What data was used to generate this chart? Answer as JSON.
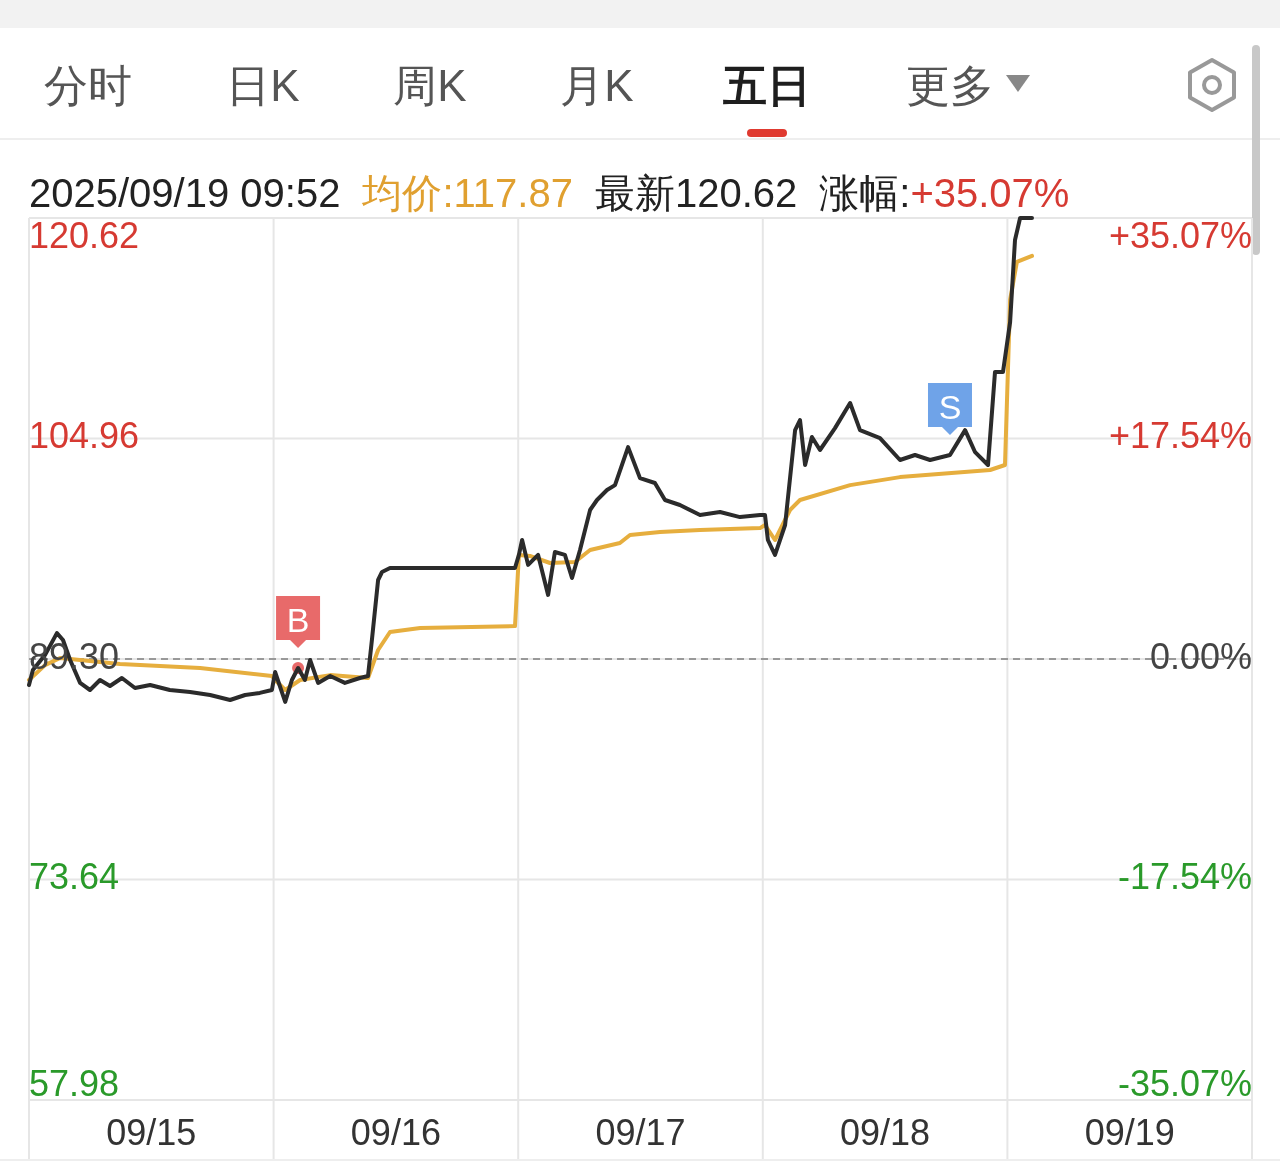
{
  "chart_data": {
    "type": "line",
    "annotations": [
      "分时",
      "日K",
      "周K",
      "月K",
      "五日",
      "更多",
      "2025/09/19 09:52",
      "均价:117.87",
      "最新120.62",
      "涨幅:+35.07%",
      {
        "text": "B",
        "x": "2025-09-16T02:24",
        "y": 88.66
      },
      {
        "text": "S",
        "x": "2025-09-18T18:22",
        "y": 103.79
      }
    ],
    "xlim": [
      "2025-09-15",
      "2025-09-20"
    ],
    "xticks": [
      {
        "value": "2025-09-15T12:00",
        "label": "09/15"
      },
      {
        "value": "2025-09-16",
        "label": null
      },
      {
        "value": "2025-09-16T12:00",
        "label": "09/16"
      },
      {
        "value": "2025-09-17",
        "label": null
      },
      {
        "value": "2025-09-17T12:00",
        "label": "09/17"
      },
      {
        "value": "2025-09-18",
        "label": null
      },
      {
        "value": "2025-09-18T12:00",
        "label": "09/18"
      },
      {
        "value": "2025-09-19",
        "label": null
      },
      {
        "value": "2025-09-19T12:00",
        "label": "09/19"
      }
    ],
    "ylim": [
      57.98,
      120.62
    ],
    "yticks": [
      57.98,
      73.64,
      {
        "value": 89.3,
        "label": "89.30"
      },
      104.96,
      120.62
    ],
    "y2lim": [
      -35.07,
      35.07
    ],
    "y2ticks": [
      {
        "value": -35.07,
        "label": "-35.07%"
      },
      {
        "value": -17.54,
        "label": "-17.54%"
      },
      {
        "value": 0,
        "label": "0.00%"
      },
      {
        "value": 17.54,
        "label": "+17.54%"
      },
      {
        "value": 35.07,
        "label": "+35.07%"
      }
    ],
    "grid": true,
    "ref_lines": [
      {
        "axis": "y",
        "value": 89.3,
        "color": "#999999",
        "line_style": "dashed"
      }
    ],
    "series": [
      {
        "color": "#2b2b2b",
        "x": [
          "2025-09-15T00:00",
          "2025-09-15T00:23",
          "2025-09-15T01:34",
          "2025-09-15T02:44",
          "2025-09-15T03:20",
          "2025-09-15T04:02",
          "2025-09-15T05:01",
          "2025-09-15T05:59",
          "2025-09-15T06:58",
          "2025-09-15T07:57",
          "2025-09-15T09:07",
          "2025-09-15T10:24",
          "2025-09-15T11:53",
          "2025-09-15T13:49",
          "2025-09-15T15:48",
          "2025-09-15T17:46",
          "2025-09-15T19:44",
          "2025-09-15T21:12",
          "2025-09-15T22:39",
          "2025-09-15T23:50",
          "2025-09-16T00:09",
          "2025-09-16T01:08",
          "2025-09-16T01:48",
          "2025-09-16T02:24",
          "2025-09-16T03:04",
          "2025-09-16T03:35",
          "2025-09-16T04:22",
          "2025-09-16T05:33",
          "2025-09-16T07:00",
          "2025-09-16T08:28",
          "2025-09-16T09:16",
          "2025-09-16T09:39",
          "2025-09-16T10:15",
          "2025-09-16T10:38",
          "2025-09-16T11:25",
          "2025-09-16T17:18",
          "2025-09-16T23:41",
          "2025-09-17T00:04",
          "2025-09-17T00:23",
          "2025-09-17T00:58",
          "2025-09-17T01:57",
          "2025-09-17T02:56",
          "2025-09-17T03:36",
          "2025-09-17T04:35",
          "2025-09-17T05:17",
          "2025-09-17T06:04",
          "2025-09-17T07:03",
          "2025-09-17T07:44",
          "2025-09-17T08:43",
          "2025-09-17T09:30",
          "2025-09-17T10:47",
          "2025-09-17T11:57",
          "2025-09-17T13:25",
          "2025-09-17T14:24",
          "2025-09-17T15:52",
          "2025-09-17T17:50",
          "2025-09-17T19:48",
          "2025-09-17T21:46",
          "2025-09-17T23:44",
          "2025-09-18T00:13",
          "2025-09-18T00:30",
          "2025-09-18T01:12",
          "2025-09-18T02:11",
          "2025-09-18T03:10",
          "2025-09-18T03:39",
          "2025-09-18T04:09",
          "2025-09-18T04:49",
          "2025-09-18T05:37",
          "2025-09-18T07:05",
          "2025-09-18T08:34",
          "2025-09-18T09:32",
          "2025-09-18T11:30",
          "2025-09-18T13:28",
          "2025-09-18T14:56",
          "2025-09-18T16:25",
          "2025-09-18T18:22",
          "2025-09-18T19:51",
          "2025-09-18T20:50",
          "2025-09-18T22:06",
          "2025-09-18T22:47",
          "2025-09-18T23:34",
          "2025-09-19T00:16",
          "2025-09-19T00:45",
          "2025-09-19T01:15",
          "2025-09-19T02:25"
        ],
        "values": [
          87.45,
          88.52,
          89.58,
          91.14,
          90.65,
          89.23,
          87.6,
          87.1,
          87.81,
          87.38,
          87.95,
          87.24,
          87.45,
          87.1,
          86.96,
          86.74,
          86.39,
          86.74,
          86.89,
          87.1,
          88.38,
          86.25,
          87.81,
          88.66,
          87.81,
          89.23,
          87.6,
          88.09,
          87.6,
          87.95,
          88.09,
          90.65,
          94.91,
          95.48,
          95.76,
          95.76,
          95.76,
          96.69,
          97.75,
          95.98,
          96.69,
          93.85,
          96.9,
          96.69,
          95.05,
          97.04,
          99.88,
          100.59,
          101.3,
          101.65,
          104.35,
          102.15,
          101.8,
          100.59,
          100.24,
          99.53,
          99.74,
          99.38,
          99.53,
          99.53,
          97.75,
          96.69,
          98.82,
          105.56,
          106.27,
          103.08,
          105.07,
          104.14,
          105.7,
          107.48,
          105.56,
          104.99,
          103.43,
          103.79,
          103.43,
          103.79,
          105.56,
          103.99,
          103.08,
          109.68,
          109.68,
          113.23,
          119.06,
          120.62,
          120.62
        ]
      },
      {
        "color": "#e6ae3e",
        "x": [
          "2025-09-15T00:00",
          "2025-09-15T01:34",
          "2025-09-15T03:03",
          "2025-09-15T08:56",
          "2025-09-15T16:47",
          "2025-09-15T23:50",
          "2025-09-16T00:09",
          "2025-09-16T01:08",
          "2025-09-16T02:36",
          "2025-09-16T05:33",
          "2025-09-16T09:16",
          "2025-09-16T10:15",
          "2025-09-16T11:25",
          "2025-09-16T14:23",
          "2025-09-16T23:41",
          "2025-09-17T00:04",
          "2025-09-17T01:09",
          "2025-09-17T03:07",
          "2025-09-17T05:34",
          "2025-09-17T07:03",
          "2025-09-17T09:59",
          "2025-09-17T10:58",
          "2025-09-17T13:55",
          "2025-09-17T17:50",
          "2025-09-17T23:44",
          "2025-09-18T00:13",
          "2025-09-18T01:12",
          "2025-09-18T02:40",
          "2025-09-18T03:39",
          "2025-09-18T08:34",
          "2025-09-18T13:28",
          "2025-09-18T22:18",
          "2025-09-18T23:46",
          "2025-09-19T00:16",
          "2025-09-19T00:56",
          "2025-09-19T02:25"
        ],
        "values": [
          87.81,
          88.87,
          89.37,
          88.94,
          88.66,
          88.09,
          87.81,
          87.1,
          87.81,
          88.16,
          87.95,
          89.94,
          91.22,
          91.5,
          91.64,
          96.69,
          96.62,
          96.12,
          96.19,
          97.04,
          97.54,
          98.11,
          98.32,
          98.46,
          98.6,
          98.82,
          97.75,
          99.88,
          100.59,
          101.65,
          102.22,
          102.72,
          103.08,
          114.8,
          117.5,
          117.93
        ]
      }
    ]
  }
}
